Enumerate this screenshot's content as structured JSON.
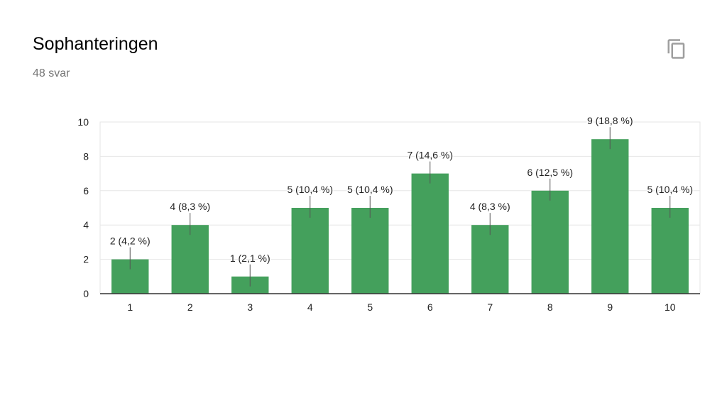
{
  "header": {
    "title": "Sophanteringen",
    "response_count": "48 svar",
    "copy_icon": "copy-icon"
  },
  "colors": {
    "bar": "#44a05c",
    "grid": "#e6e6e6",
    "axis": "#333333",
    "label": "#222222"
  },
  "chart_data": {
    "type": "bar",
    "title": "Sophanteringen",
    "xlabel": "",
    "ylabel": "",
    "categories": [
      "1",
      "2",
      "3",
      "4",
      "5",
      "6",
      "7",
      "8",
      "9",
      "10"
    ],
    "values": [
      2,
      4,
      1,
      5,
      5,
      7,
      4,
      6,
      9,
      5
    ],
    "data_labels": [
      "2 (4,2 %)",
      "4 (8,3 %)",
      "1 (2,1 %)",
      "5 (10,4 %)",
      "5 (10,4 %)",
      "7 (14,6 %)",
      "4 (8,3 %)",
      "6 (12,5 %)",
      "9 (18,8 %)",
      "5 (10,4 %)"
    ],
    "ylim": [
      0,
      10
    ],
    "yticks": [
      "0",
      "2",
      "4",
      "6",
      "8",
      "10"
    ],
    "grid": true,
    "legend": "none"
  }
}
